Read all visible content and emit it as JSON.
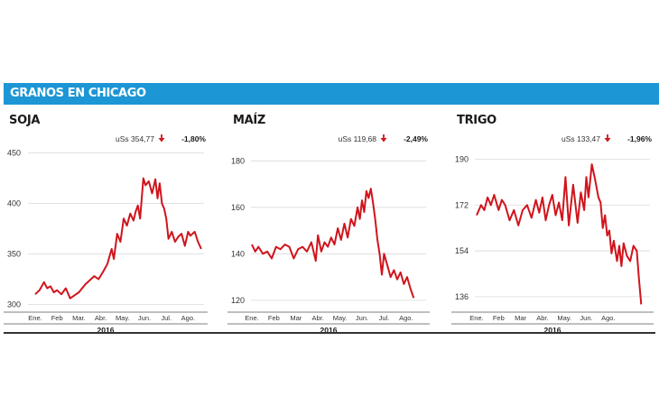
{
  "banner": {
    "title": "GRANOS EN CHICAGO"
  },
  "colors": {
    "banner": "#1c96d4",
    "series": "#d0141c",
    "grid": "#d9d9d9",
    "rule": "#333333"
  },
  "chart_data": [
    {
      "type": "line",
      "title": "SOJA",
      "price_label": "uSs 354,77",
      "change_icon": "arrow-down-icon",
      "change_label": "-1,80%",
      "months": [
        "Ene.",
        "Feb",
        "Mar.",
        "Abr.",
        "May.",
        "Jun.",
        "Jul.",
        "Ago."
      ],
      "year_label": "2016",
      "yticks": [
        300,
        350,
        400,
        450
      ],
      "ylim": [
        295,
        455
      ],
      "grid": "horizontal",
      "series": [
        {
          "x": [
            0,
            0.2,
            0.4,
            0.55,
            0.7,
            0.85,
            1.0,
            1.2,
            1.4,
            1.6,
            1.8,
            2.0,
            2.15,
            2.3,
            2.5,
            2.7,
            2.9,
            3.1,
            3.3,
            3.5,
            3.6,
            3.75,
            3.9,
            4.05,
            4.2,
            4.35,
            4.5,
            4.6,
            4.7,
            4.8,
            4.95,
            5.05,
            5.2,
            5.35,
            5.5,
            5.6,
            5.7,
            5.8,
            5.9,
            6.0,
            6.1,
            6.25,
            6.4,
            6.55,
            6.7,
            6.85,
            7.0,
            7.1,
            7.2,
            7.3,
            7.45,
            7.6
          ],
          "y": [
            310,
            314,
            322,
            316,
            318,
            312,
            314,
            310,
            316,
            306,
            309,
            312,
            316,
            320,
            324,
            328,
            325,
            332,
            340,
            355,
            345,
            370,
            362,
            385,
            378,
            390,
            383,
            392,
            398,
            385,
            425,
            418,
            422,
            410,
            424,
            405,
            420,
            400,
            395,
            385,
            365,
            372,
            362,
            367,
            370,
            358,
            372,
            368,
            370,
            372,
            362,
            355
          ]
        }
      ]
    },
    {
      "type": "line",
      "title": "MAÍZ",
      "price_label": "uSs 119,68",
      "change_icon": "arrow-down-icon",
      "change_label": "-2,49%",
      "months": [
        "Ene.",
        "Feb",
        "Mar",
        "Abr.",
        "May.",
        "Jun.",
        "Jul.",
        "Ago."
      ],
      "year_label": "2016",
      "yticks": [
        120,
        140,
        160,
        180
      ],
      "ylim": [
        118,
        184
      ],
      "grid": "horizontal",
      "series": [
        {
          "x": [
            0,
            0.15,
            0.3,
            0.5,
            0.7,
            0.9,
            1.1,
            1.3,
            1.5,
            1.7,
            1.9,
            2.1,
            2.3,
            2.5,
            2.7,
            2.9,
            3.0,
            3.15,
            3.3,
            3.45,
            3.6,
            3.75,
            3.9,
            4.05,
            4.2,
            4.35,
            4.5,
            4.65,
            4.8,
            4.9,
            5.0,
            5.1,
            5.2,
            5.3,
            5.4,
            5.5,
            5.6,
            5.7,
            5.8,
            5.9,
            6.0,
            6.15,
            6.3,
            6.45,
            6.6,
            6.75,
            6.9,
            7.05,
            7.2,
            7.35
          ],
          "y": [
            144,
            141,
            143,
            140,
            141,
            138,
            143,
            142,
            144,
            143,
            138,
            142,
            143,
            141,
            145,
            137,
            148,
            141,
            145,
            143,
            147,
            144,
            151,
            146,
            153,
            147,
            155,
            152,
            160,
            155,
            163,
            158,
            167,
            164,
            168,
            162,
            155,
            146,
            140,
            131,
            140,
            135,
            130,
            133,
            129,
            132,
            127,
            130,
            125,
            121
          ]
        }
      ]
    },
    {
      "type": "line",
      "title": "TRIGO",
      "price_label": "uSs 133,47",
      "change_icon": "arrow-down-icon",
      "change_label": "-1,96%",
      "months": [
        "Ene.",
        "Feb",
        "Mar",
        "Abr.",
        "May.",
        "Jun.",
        "Ago."
      ],
      "year_label": "2016",
      "yticks": [
        136,
        154,
        172,
        190
      ],
      "ylim": [
        131,
        193
      ],
      "grid": "horizontal",
      "series": [
        {
          "x": [
            0,
            0.2,
            0.35,
            0.5,
            0.65,
            0.8,
            1.0,
            1.15,
            1.3,
            1.5,
            1.7,
            1.9,
            2.1,
            2.3,
            2.5,
            2.7,
            2.85,
            3.0,
            3.15,
            3.3,
            3.45,
            3.6,
            3.75,
            3.9,
            4.05,
            4.2,
            4.4,
            4.6,
            4.75,
            4.9,
            5.0,
            5.1,
            5.25,
            5.4,
            5.55,
            5.65,
            5.75,
            5.85,
            5.95,
            6.05,
            6.15,
            6.25,
            6.4,
            6.5,
            6.6,
            6.7,
            6.85,
            7.0,
            7.15,
            7.3,
            7.4,
            7.5
          ],
          "y": [
            168,
            172,
            170,
            175,
            172,
            176,
            170,
            174,
            172,
            166,
            170,
            164,
            170,
            172,
            167,
            174,
            169,
            175,
            166,
            172,
            176,
            168,
            173,
            166,
            183,
            164,
            180,
            165,
            177,
            170,
            183,
            175,
            188,
            182,
            175,
            173,
            163,
            168,
            160,
            162,
            153,
            158,
            150,
            156,
            148,
            157,
            152,
            150,
            156,
            154,
            143,
            133
          ]
        }
      ]
    }
  ]
}
